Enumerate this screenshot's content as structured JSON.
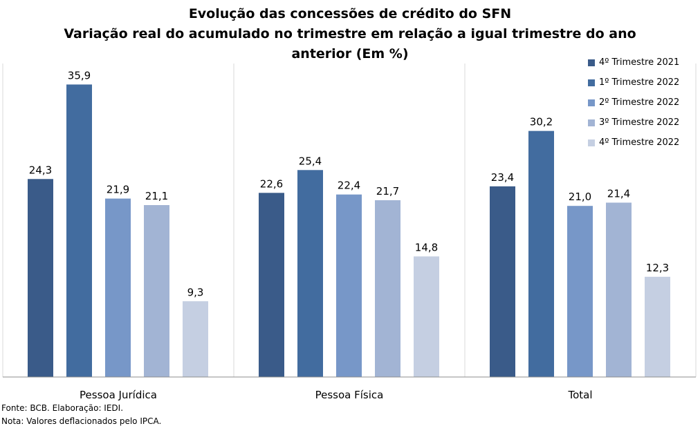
{
  "chart_data": {
    "type": "bar",
    "title": [
      "Evolução das concessões de crédito do SFN",
      "Variação real do acumulado no trimestre em relação a igual trimestre do ano",
      "anterior (Em %)"
    ],
    "categories": [
      "Pessoa Jurídica",
      "Pessoa Física",
      "Total"
    ],
    "series": [
      {
        "name": "4º Trimestre 2021",
        "color": "#3a5b89",
        "values": [
          24.3,
          22.6,
          23.4
        ],
        "labels": [
          "24,3",
          "22,6",
          "23,4"
        ]
      },
      {
        "name": "1º Trimestre 2022",
        "color": "#426c9f",
        "values": [
          35.9,
          25.4,
          30.2
        ],
        "labels": [
          "35,9",
          "25,4",
          "30,2"
        ]
      },
      {
        "name": "2º Trimestre 2022",
        "color": "#7797c8",
        "values": [
          21.9,
          22.4,
          21.0
        ],
        "labels": [
          "21,9",
          "22,4",
          "21,0"
        ]
      },
      {
        "name": "3º Trimestre 2022",
        "color": "#a2b4d4",
        "values": [
          21.1,
          21.7,
          21.4
        ],
        "labels": [
          "21,1",
          "21,7",
          "21,4"
        ]
      },
      {
        "name": "4º Trimestre 2022",
        "color": "#c5cfe2",
        "values": [
          9.3,
          14.8,
          12.3
        ],
        "labels": [
          "9,3",
          "14,8",
          "12,3"
        ]
      }
    ],
    "ylim": [
      0,
      40
    ],
    "legend_position": "top-right",
    "grid": false
  },
  "footnotes": {
    "source": "Fonte: BCB. Elaboração: IEDI.",
    "note": "Nota: Valores deflacionados pelo IPCA."
  }
}
